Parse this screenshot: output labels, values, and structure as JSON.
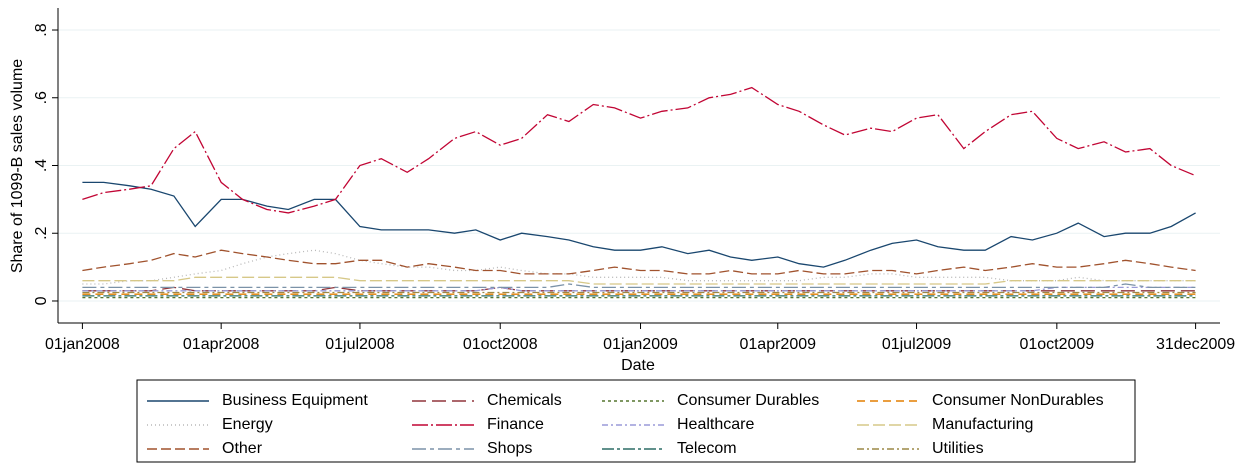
{
  "chart_data": {
    "type": "line",
    "xlabel": "Date",
    "ylabel": "Share of 1099-B sales volume",
    "xlim": [
      "16dec2007",
      "16jan2010"
    ],
    "xticks": [
      "01jan2008",
      "01apr2008",
      "01jul2008",
      "01oct2008",
      "01jan2009",
      "01apr2009",
      "01jul2009",
      "01oct2009",
      "31dec2009"
    ],
    "ylim": [
      -0.065,
      0.865
    ],
    "yticks": [
      {
        "value": 0,
        "label": "0"
      },
      {
        "value": 0.2,
        "label": ".2"
      },
      {
        "value": 0.4,
        "label": ".4"
      },
      {
        "value": 0.6,
        "label": ".6"
      },
      {
        "value": 0.8,
        "label": ".8"
      }
    ],
    "grid": true,
    "x": [
      "01jan2008",
      "15jan2008",
      "01feb2008",
      "15feb2008",
      "01mar2008",
      "15mar2008",
      "01apr2008",
      "15apr2008",
      "01may2008",
      "15may2008",
      "01jun2008",
      "15jun2008",
      "01jul2008",
      "15jul2008",
      "01aug2008",
      "15aug2008",
      "01sep2008",
      "15sep2008",
      "01oct2008",
      "15oct2008",
      "01nov2008",
      "15nov2008",
      "01dec2008",
      "15dec2008",
      "01jan2009",
      "15jan2009",
      "01feb2009",
      "15feb2009",
      "01mar2009",
      "15mar2009",
      "01apr2009",
      "15apr2009",
      "01may2009",
      "15may2009",
      "01jun2009",
      "15jun2009",
      "01jul2009",
      "15jul2009",
      "01aug2009",
      "15aug2009",
      "01sep2009",
      "15sep2009",
      "01oct2009",
      "15oct2009",
      "01nov2009",
      "15nov2009",
      "01dec2009",
      "15dec2009",
      "31dec2009"
    ],
    "series": [
      {
        "name": "Business Equipment",
        "color": "#1a476f",
        "dash": "",
        "values": [
          0.35,
          0.35,
          0.34,
          0.33,
          0.31,
          0.22,
          0.3,
          0.3,
          0.28,
          0.27,
          0.3,
          0.3,
          0.22,
          0.21,
          0.21,
          0.21,
          0.2,
          0.21,
          0.18,
          0.2,
          0.19,
          0.18,
          0.16,
          0.15,
          0.15,
          0.16,
          0.14,
          0.15,
          0.13,
          0.12,
          0.13,
          0.11,
          0.1,
          0.12,
          0.15,
          0.17,
          0.18,
          0.16,
          0.15,
          0.15,
          0.19,
          0.18,
          0.2,
          0.23,
          0.19,
          0.2,
          0.2,
          0.22,
          0.26
        ]
      },
      {
        "name": "Chemicals",
        "color": "#90353b",
        "dash": "14 6",
        "values": [
          0.03,
          0.03,
          0.03,
          0.03,
          0.04,
          0.03,
          0.03,
          0.03,
          0.03,
          0.03,
          0.03,
          0.04,
          0.03,
          0.03,
          0.03,
          0.03,
          0.03,
          0.03,
          0.04,
          0.03,
          0.03,
          0.03,
          0.03,
          0.03,
          0.03,
          0.03,
          0.03,
          0.03,
          0.03,
          0.03,
          0.03,
          0.03,
          0.03,
          0.03,
          0.03,
          0.03,
          0.03,
          0.03,
          0.03,
          0.03,
          0.03,
          0.03,
          0.03,
          0.03,
          0.03,
          0.03,
          0.03,
          0.03,
          0.03
        ]
      },
      {
        "name": "Consumer Durables",
        "color": "#55752f",
        "dash": "3 3",
        "values": [
          0.01,
          0.01,
          0.01,
          0.01,
          0.01,
          0.01,
          0.01,
          0.01,
          0.01,
          0.01,
          0.01,
          0.01,
          0.01,
          0.01,
          0.01,
          0.01,
          0.01,
          0.01,
          0.01,
          0.01,
          0.01,
          0.01,
          0.01,
          0.01,
          0.01,
          0.01,
          0.01,
          0.01,
          0.01,
          0.01,
          0.01,
          0.01,
          0.01,
          0.01,
          0.01,
          0.01,
          0.01,
          0.01,
          0.01,
          0.01,
          0.01,
          0.01,
          0.01,
          0.01,
          0.01,
          0.01,
          0.01,
          0.01,
          0.01
        ]
      },
      {
        "name": "Consumer NonDurables",
        "color": "#e37e00",
        "dash": "8 5",
        "values": [
          0.02,
          0.02,
          0.02,
          0.02,
          0.02,
          0.02,
          0.02,
          0.02,
          0.02,
          0.02,
          0.02,
          0.02,
          0.02,
          0.02,
          0.02,
          0.02,
          0.02,
          0.02,
          0.02,
          0.02,
          0.02,
          0.02,
          0.02,
          0.02,
          0.02,
          0.02,
          0.02,
          0.02,
          0.02,
          0.02,
          0.02,
          0.02,
          0.02,
          0.02,
          0.02,
          0.02,
          0.02,
          0.02,
          0.02,
          0.02,
          0.02,
          0.02,
          0.02,
          0.02,
          0.02,
          0.02,
          0.02,
          0.02,
          0.02
        ]
      },
      {
        "name": "Energy",
        "color": "#b8b8b8",
        "dash": "1 3",
        "values": [
          0.05,
          0.05,
          0.06,
          0.06,
          0.07,
          0.08,
          0.09,
          0.11,
          0.13,
          0.14,
          0.15,
          0.14,
          0.12,
          0.11,
          0.1,
          0.1,
          0.09,
          0.09,
          0.1,
          0.09,
          0.08,
          0.08,
          0.07,
          0.07,
          0.07,
          0.07,
          0.06,
          0.06,
          0.06,
          0.06,
          0.06,
          0.06,
          0.07,
          0.07,
          0.08,
          0.08,
          0.07,
          0.07,
          0.07,
          0.07,
          0.06,
          0.06,
          0.06,
          0.07,
          0.06,
          0.06,
          0.06,
          0.06,
          0.06
        ]
      },
      {
        "name": "Finance",
        "color": "#c10534",
        "dash": "16 3 2 3",
        "values": [
          0.3,
          0.32,
          0.33,
          0.34,
          0.45,
          0.5,
          0.35,
          0.3,
          0.27,
          0.26,
          0.28,
          0.3,
          0.4,
          0.42,
          0.38,
          0.42,
          0.48,
          0.5,
          0.46,
          0.48,
          0.55,
          0.53,
          0.58,
          0.57,
          0.54,
          0.56,
          0.57,
          0.6,
          0.61,
          0.63,
          0.58,
          0.56,
          0.52,
          0.49,
          0.51,
          0.5,
          0.54,
          0.55,
          0.45,
          0.5,
          0.55,
          0.56,
          0.48,
          0.45,
          0.47,
          0.44,
          0.45,
          0.4,
          0.37
        ]
      },
      {
        "name": "Healthcare",
        "color": "#9a9ad8",
        "dash": "6 3 2 3",
        "values": [
          0.03,
          0.03,
          0.03,
          0.03,
          0.03,
          0.03,
          0.03,
          0.03,
          0.03,
          0.03,
          0.03,
          0.03,
          0.03,
          0.03,
          0.03,
          0.03,
          0.03,
          0.03,
          0.04,
          0.03,
          0.03,
          0.03,
          0.03,
          0.03,
          0.03,
          0.03,
          0.03,
          0.03,
          0.03,
          0.03,
          0.03,
          0.03,
          0.03,
          0.03,
          0.03,
          0.03,
          0.03,
          0.03,
          0.03,
          0.03,
          0.03,
          0.03,
          0.04,
          0.04,
          0.04,
          0.04,
          0.04,
          0.04,
          0.04
        ]
      },
      {
        "name": "Manufacturing",
        "color": "#d6c888",
        "dash": "12 4",
        "values": [
          0.06,
          0.06,
          0.06,
          0.06,
          0.06,
          0.07,
          0.07,
          0.07,
          0.07,
          0.07,
          0.07,
          0.07,
          0.06,
          0.06,
          0.06,
          0.06,
          0.06,
          0.06,
          0.06,
          0.06,
          0.06,
          0.06,
          0.05,
          0.05,
          0.05,
          0.05,
          0.05,
          0.05,
          0.05,
          0.05,
          0.05,
          0.05,
          0.05,
          0.05,
          0.05,
          0.05,
          0.05,
          0.05,
          0.05,
          0.05,
          0.06,
          0.06,
          0.06,
          0.06,
          0.06,
          0.06,
          0.06,
          0.06,
          0.06
        ]
      },
      {
        "name": "Other",
        "color": "#a0522d",
        "dash": "10 4",
        "values": [
          0.09,
          0.1,
          0.11,
          0.12,
          0.14,
          0.13,
          0.15,
          0.14,
          0.13,
          0.12,
          0.11,
          0.11,
          0.12,
          0.12,
          0.1,
          0.11,
          0.1,
          0.09,
          0.09,
          0.08,
          0.08,
          0.08,
          0.09,
          0.1,
          0.09,
          0.09,
          0.08,
          0.08,
          0.09,
          0.08,
          0.08,
          0.09,
          0.08,
          0.08,
          0.09,
          0.09,
          0.08,
          0.09,
          0.1,
          0.09,
          0.1,
          0.11,
          0.1,
          0.1,
          0.11,
          0.12,
          0.11,
          0.1,
          0.09
        ]
      },
      {
        "name": "Shops",
        "color": "#7b92a8",
        "dash": "14 4 4 4",
        "values": [
          0.04,
          0.04,
          0.04,
          0.04,
          0.04,
          0.04,
          0.04,
          0.04,
          0.04,
          0.04,
          0.04,
          0.04,
          0.04,
          0.04,
          0.04,
          0.04,
          0.04,
          0.04,
          0.04,
          0.04,
          0.04,
          0.05,
          0.04,
          0.04,
          0.04,
          0.04,
          0.04,
          0.04,
          0.04,
          0.04,
          0.04,
          0.04,
          0.04,
          0.04,
          0.04,
          0.04,
          0.04,
          0.04,
          0.04,
          0.04,
          0.04,
          0.04,
          0.04,
          0.04,
          0.04,
          0.05,
          0.04,
          0.04,
          0.04
        ]
      },
      {
        "name": "Telecom",
        "color": "#2d6d66",
        "dash": "12 3 3 3",
        "values": [
          0.015,
          0.015,
          0.015,
          0.015,
          0.015,
          0.015,
          0.015,
          0.015,
          0.015,
          0.015,
          0.015,
          0.015,
          0.015,
          0.015,
          0.015,
          0.015,
          0.015,
          0.015,
          0.015,
          0.015,
          0.015,
          0.015,
          0.015,
          0.015,
          0.015,
          0.015,
          0.015,
          0.015,
          0.015,
          0.015,
          0.015,
          0.015,
          0.015,
          0.015,
          0.015,
          0.015,
          0.015,
          0.015,
          0.015,
          0.015,
          0.015,
          0.015,
          0.015,
          0.015,
          0.015,
          0.015,
          0.015,
          0.015,
          0.015
        ]
      },
      {
        "name": "Utilities",
        "color": "#9c8847",
        "dash": "7 3 2 3",
        "values": [
          0.025,
          0.025,
          0.025,
          0.025,
          0.025,
          0.025,
          0.025,
          0.025,
          0.025,
          0.025,
          0.025,
          0.025,
          0.025,
          0.025,
          0.025,
          0.025,
          0.025,
          0.025,
          0.025,
          0.025,
          0.025,
          0.025,
          0.025,
          0.025,
          0.025,
          0.025,
          0.025,
          0.025,
          0.025,
          0.025,
          0.025,
          0.025,
          0.025,
          0.025,
          0.025,
          0.025,
          0.025,
          0.025,
          0.025,
          0.025,
          0.025,
          0.025,
          0.025,
          0.025,
          0.025,
          0.025,
          0.025,
          0.025,
          0.025
        ]
      }
    ]
  }
}
